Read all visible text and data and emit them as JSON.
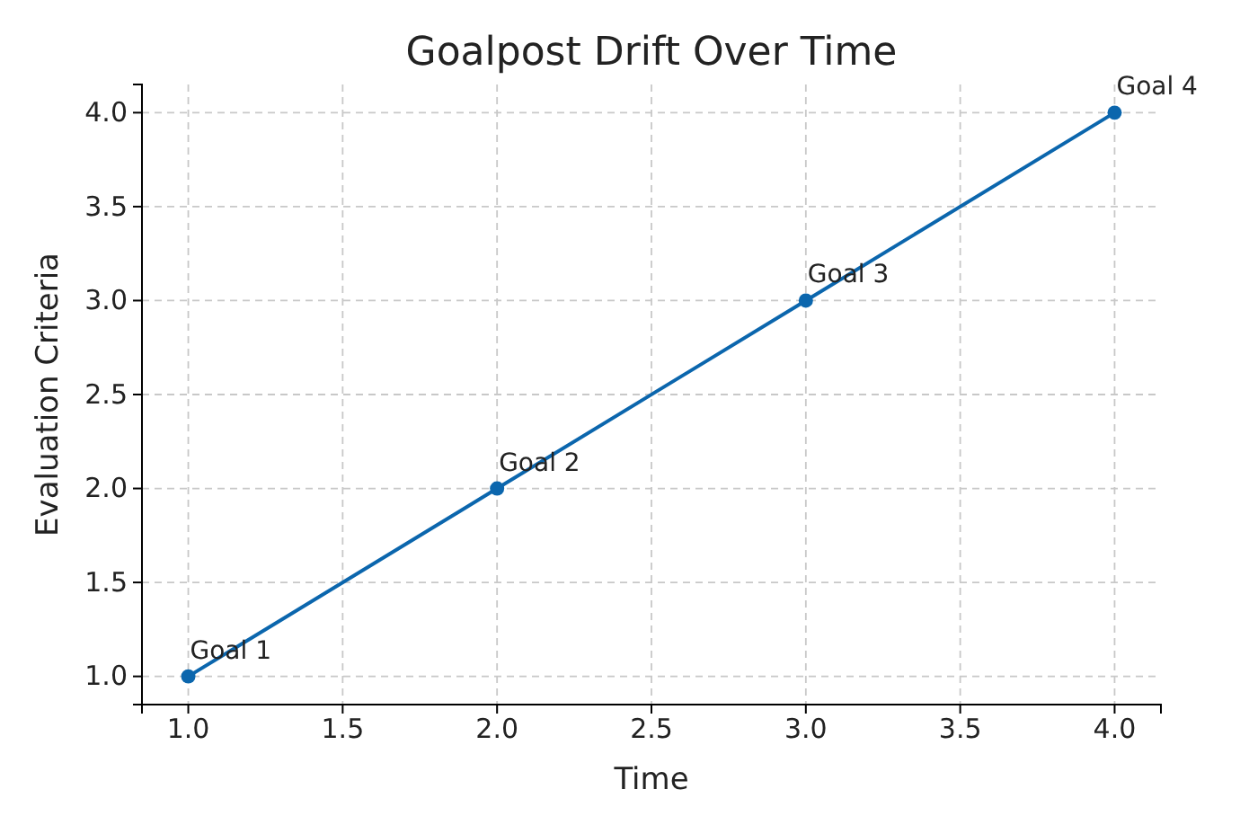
{
  "chart_data": {
    "type": "line",
    "title": "Goalpost Drift Over Time",
    "xlabel": "Time",
    "ylabel": "Evaluation Criteria",
    "x": [
      1,
      2,
      3,
      4
    ],
    "series": [
      {
        "color": "#0b66ad",
        "values": [
          1,
          2,
          3,
          4
        ]
      }
    ],
    "xlim": [
      0.85,
      4.15
    ],
    "xticks": [
      {
        "value": 1,
        "label": "1.0"
      },
      {
        "value": 1.5,
        "label": "1.5"
      },
      {
        "value": 2,
        "label": "2.0"
      },
      {
        "value": 2.5,
        "label": "2.5"
      },
      {
        "value": 3,
        "label": "3.0"
      },
      {
        "value": 3.5,
        "label": "3.5"
      },
      {
        "value": 4,
        "label": "4.0"
      }
    ],
    "ylim": [
      0.85,
      4.15
    ],
    "yticks": [
      {
        "value": 1,
        "label": "1.0"
      },
      {
        "value": 1.5,
        "label": "1.5"
      },
      {
        "value": 2,
        "label": "2.0"
      },
      {
        "value": 2.5,
        "label": "2.5"
      },
      {
        "value": 3,
        "label": "3.0"
      },
      {
        "value": 3.5,
        "label": "3.5"
      },
      {
        "value": 4,
        "label": "4.0"
      }
    ],
    "grid": true,
    "marker": "circle",
    "line_style": "solid",
    "annotations": [
      {
        "text": "Goal 1",
        "x": 1,
        "y": 1
      },
      {
        "text": "Goal 2",
        "x": 2,
        "y": 2
      },
      {
        "text": "Goal 3",
        "x": 3,
        "y": 3
      },
      {
        "text": "Goal 4",
        "x": 4,
        "y": 4
      }
    ]
  }
}
